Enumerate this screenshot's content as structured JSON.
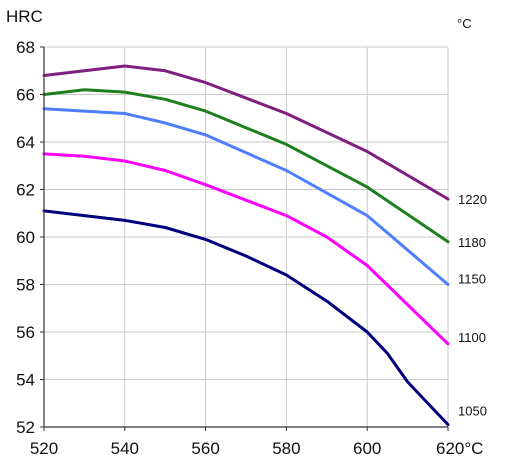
{
  "chart_data": {
    "type": "line",
    "title": "",
    "ylabel": "HRC",
    "unit_label": "°C",
    "xlim": [
      520,
      620
    ],
    "ylim": [
      52,
      68
    ],
    "x_ticks": [
      520,
      540,
      560,
      580,
      600,
      620
    ],
    "x_tick_labels": [
      "520",
      "540",
      "560",
      "580",
      "600",
      "620°C"
    ],
    "y_ticks": [
      52,
      54,
      56,
      58,
      60,
      62,
      64,
      66,
      68
    ],
    "y_tick_labels": [
      "52",
      "54",
      "56",
      "58",
      "60",
      "62",
      "64",
      "66",
      "68"
    ],
    "grid": true,
    "series": [
      {
        "name": "1220",
        "color": "#7f1f7f",
        "points": [
          [
            520,
            66.8
          ],
          [
            540,
            67.2
          ],
          [
            550,
            67.0
          ],
          [
            560,
            66.5
          ],
          [
            580,
            65.2
          ],
          [
            600,
            63.6
          ],
          [
            620,
            61.6
          ]
        ]
      },
      {
        "name": "1180",
        "color": "#1f7f1f",
        "points": [
          [
            520,
            66.0
          ],
          [
            530,
            66.2
          ],
          [
            540,
            66.1
          ],
          [
            550,
            65.8
          ],
          [
            560,
            65.3
          ],
          [
            580,
            63.9
          ],
          [
            600,
            62.1
          ],
          [
            620,
            59.8
          ]
        ]
      },
      {
        "name": "1150",
        "color": "#4f7fff",
        "points": [
          [
            520,
            65.4
          ],
          [
            540,
            65.2
          ],
          [
            550,
            64.8
          ],
          [
            560,
            64.3
          ],
          [
            580,
            62.8
          ],
          [
            600,
            60.9
          ],
          [
            620,
            58.0
          ]
        ]
      },
      {
        "name": "1100",
        "color": "#ff00ff",
        "points": [
          [
            520,
            63.5
          ],
          [
            530,
            63.4
          ],
          [
            540,
            63.2
          ],
          [
            550,
            62.8
          ],
          [
            560,
            62.2
          ],
          [
            580,
            60.9
          ],
          [
            590,
            60.0
          ],
          [
            600,
            58.8
          ],
          [
            620,
            55.5
          ]
        ]
      },
      {
        "name": "1050",
        "color": "#00007f",
        "points": [
          [
            520,
            61.1
          ],
          [
            530,
            60.9
          ],
          [
            540,
            60.7
          ],
          [
            550,
            60.4
          ],
          [
            560,
            59.9
          ],
          [
            570,
            59.2
          ],
          [
            580,
            58.4
          ],
          [
            590,
            57.3
          ],
          [
            600,
            56.0
          ],
          [
            605,
            55.1
          ],
          [
            610,
            53.9
          ],
          [
            620,
            52.1
          ]
        ]
      }
    ]
  }
}
